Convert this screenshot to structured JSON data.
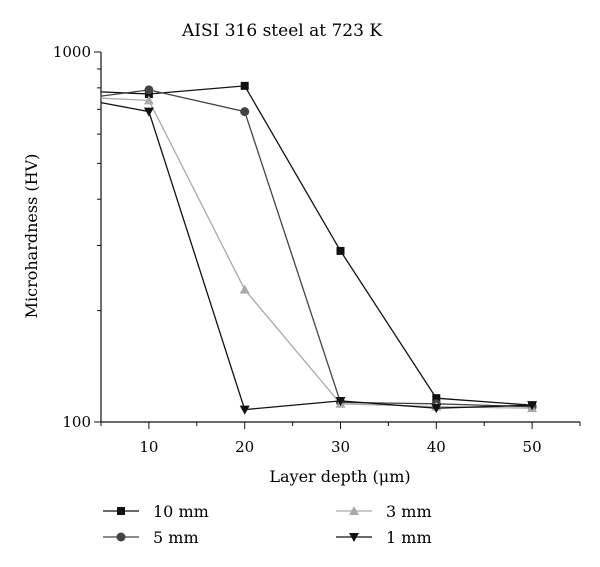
{
  "chart_data": {
    "type": "line",
    "title": "AISI 316 steel at 723 K",
    "xlabel": "Layer depth (μm)",
    "ylabel": "Microhardness (HV)",
    "xlim": [
      5,
      55
    ],
    "ylim": [
      100,
      1000
    ],
    "yscale": "log",
    "x_ticks": [
      10,
      20,
      30,
      40,
      50
    ],
    "y_ticks": [
      100,
      1000
    ],
    "grid": false,
    "legend_position": "bottom",
    "series": [
      {
        "name": "10 mm",
        "marker": "square",
        "color": "#111111",
        "x": [
          5,
          10,
          20,
          30,
          40,
          50
        ],
        "y": [
          780,
          770,
          810,
          290,
          116,
          111
        ]
      },
      {
        "name": "5 mm",
        "marker": "circle",
        "color": "#444444",
        "x": [
          5,
          10,
          20,
          30,
          40,
          50
        ],
        "y": [
          760,
          790,
          690,
          113,
          112,
          110
        ]
      },
      {
        "name": "3 mm",
        "marker": "triangle-up",
        "color": "#aaaaaa",
        "x": [
          5,
          10,
          20,
          30,
          40,
          50
        ],
        "y": [
          750,
          740,
          228,
          112,
          110,
          109
        ]
      },
      {
        "name": "1 mm",
        "marker": "triangle-down",
        "color": "#111111",
        "x": [
          5,
          10,
          20,
          30,
          40,
          50
        ],
        "y": [
          730,
          690,
          108,
          114,
          109,
          111
        ]
      }
    ]
  }
}
